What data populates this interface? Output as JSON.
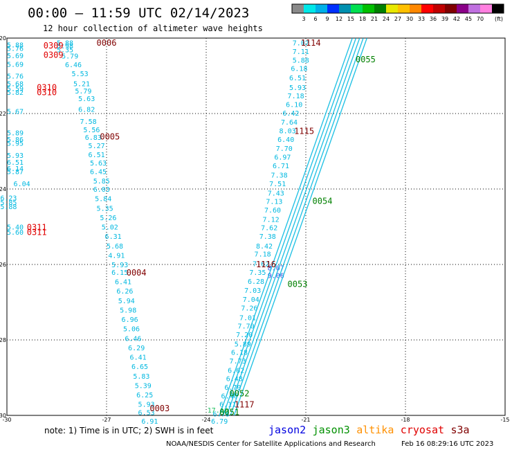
{
  "chart_data": {
    "type": "scatter",
    "title": "00:00 – 11:59 UTC 02/14/2023",
    "subtitle": "12 hour collection of altimeter wave heights",
    "xlim": [
      -30,
      -15
    ],
    "ylim": [
      -30,
      -20
    ],
    "x_ticks": [
      "-30",
      "-27",
      "-24",
      "-21",
      "-18",
      "-15"
    ],
    "y_ticks": [
      "-20",
      "-22",
      "-24",
      "-26",
      "-28",
      "-30"
    ],
    "x_tick_values": [
      -30,
      -27,
      -24,
      -21,
      -18,
      -15
    ],
    "y_tick_values": [
      -20,
      -22,
      -24,
      -26,
      -28,
      -30
    ],
    "grid": true,
    "colorbar": {
      "unit": "(ft)",
      "labels": [
        "3",
        "6",
        "9",
        "12",
        "15",
        "18",
        "21",
        "24",
        "27",
        "30",
        "33",
        "36",
        "39",
        "42",
        "45",
        "70"
      ],
      "colors": [
        "#8a8a8a",
        "#00e8e8",
        "#00b0e8",
        "#0030ff",
        "#0090b0",
        "#00e050",
        "#00c000",
        "#008000",
        "#e8e800",
        "#ffc000",
        "#ff8800",
        "#ff0000",
        "#c00000",
        "#800000",
        "#8a0088",
        "#c070e0",
        "#ff80e0",
        "#000000"
      ]
    },
    "track_labels": [
      {
        "text": "0006",
        "x": -27.0,
        "y": -20.11,
        "color": "#800000"
      },
      {
        "text": "0309",
        "x": -28.6,
        "y": -20.18,
        "color": "#e00000"
      },
      {
        "text": "0309",
        "x": -28.6,
        "y": -20.43,
        "color": "#e00000"
      },
      {
        "text": "0310",
        "x": -28.8,
        "y": -21.29,
        "color": "#e00000"
      },
      {
        "text": "0310",
        "x": -28.8,
        "y": -21.42,
        "color": "#e00000"
      },
      {
        "text": "0005",
        "x": -26.9,
        "y": -22.6,
        "color": "#800000"
      },
      {
        "text": "0311",
        "x": -29.1,
        "y": -25.0,
        "color": "#e00000"
      },
      {
        "text": "0311",
        "x": -29.1,
        "y": -25.13,
        "color": "#e00000"
      },
      {
        "text": "0004",
        "x": -26.1,
        "y": -26.2,
        "color": "#800000"
      },
      {
        "text": "0003",
        "x": -25.4,
        "y": -29.8,
        "color": "#800000"
      },
      {
        "text": "1114",
        "x": -20.85,
        "y": -20.11,
        "color": "#800000"
      },
      {
        "text": "1115",
        "x": -21.05,
        "y": -22.45,
        "color": "#800000"
      },
      {
        "text": "1116",
        "x": -22.2,
        "y": -25.98,
        "color": "#800000"
      },
      {
        "text": "1117",
        "x": -22.85,
        "y": -29.7,
        "color": "#800000"
      },
      {
        "text": "0055",
        "x": -19.2,
        "y": -20.55,
        "color": "#008000"
      },
      {
        "text": "0054",
        "x": -20.5,
        "y": -24.3,
        "color": "#008000"
      },
      {
        "text": "0053",
        "x": -21.25,
        "y": -26.5,
        "color": "#008000"
      },
      {
        "text": "0052",
        "x": -23.0,
        "y": -29.4,
        "color": "#008000"
      },
      {
        "text": "0051",
        "x": -23.3,
        "y": -29.9,
        "color": "#008000"
      }
    ],
    "series": [
      {
        "color": "#00b8e0",
        "points": [
          {
            "x": -29.75,
            "y": -20.17,
            "v": "5.88"
          },
          {
            "x": -29.75,
            "y": -20.27,
            "v": "5.76"
          },
          {
            "x": -29.75,
            "y": -20.46,
            "v": "5.69"
          },
          {
            "x": -29.75,
            "y": -20.69,
            "v": "5.69"
          },
          {
            "x": -29.75,
            "y": -21.0,
            "v": "5.76"
          },
          {
            "x": -29.75,
            "y": -21.2,
            "v": "5.68"
          },
          {
            "x": -29.75,
            "y": -21.33,
            "v": "5.59"
          },
          {
            "x": -29.75,
            "y": -21.43,
            "v": "5.82"
          },
          {
            "x": -29.75,
            "y": -21.94,
            "v": "5.67"
          },
          {
            "x": -29.75,
            "y": -22.5,
            "v": "5.89"
          },
          {
            "x": -29.75,
            "y": -22.68,
            "v": "5.86"
          },
          {
            "x": -29.75,
            "y": -22.78,
            "v": "5.95"
          },
          {
            "x": -29.75,
            "y": -23.1,
            "v": "5.93"
          },
          {
            "x": -29.75,
            "y": -23.28,
            "v": "6.51"
          },
          {
            "x": -29.75,
            "y": -23.45,
            "v": "6.14"
          },
          {
            "x": -29.75,
            "y": -23.53,
            "v": "5.87"
          },
          {
            "x": -29.55,
            "y": -23.85,
            "v": "6.04"
          },
          {
            "x": -29.95,
            "y": -24.23,
            "v": "6.23"
          },
          {
            "x": -29.95,
            "y": -24.35,
            "v": "5.85"
          },
          {
            "x": -29.95,
            "y": -24.46,
            "v": "5.88"
          },
          {
            "x": -29.75,
            "y": -25.0,
            "v": "5.40"
          },
          {
            "x": -29.75,
            "y": -25.14,
            "v": "5.60"
          }
        ]
      },
      {
        "color": "#00b8e0",
        "points": [
          {
            "x": -28.25,
            "y": -20.12,
            "v": "5.88"
          },
          {
            "x": -28.25,
            "y": -20.2,
            "v": "5.98"
          },
          {
            "x": -28.25,
            "y": -20.3,
            "v": "5.35"
          },
          {
            "x": -28.1,
            "y": -20.47,
            "v": "5.79"
          },
          {
            "x": -28.0,
            "y": -20.7,
            "v": "6.46"
          },
          {
            "x": -27.8,
            "y": -20.94,
            "v": "5.53"
          },
          {
            "x": -27.75,
            "y": -21.2,
            "v": "5.21"
          },
          {
            "x": -27.7,
            "y": -21.39,
            "v": "5.79"
          },
          {
            "x": -27.6,
            "y": -21.6,
            "v": "5.63"
          },
          {
            "x": -27.6,
            "y": -21.88,
            "v": "6.82"
          },
          {
            "x": -27.55,
            "y": -22.2,
            "v": "7.58"
          },
          {
            "x": -27.45,
            "y": -22.42,
            "v": "5.56"
          },
          {
            "x": -27.4,
            "y": -22.62,
            "v": "6.83"
          },
          {
            "x": -27.3,
            "y": -22.84,
            "v": "5.27"
          },
          {
            "x": -27.3,
            "y": -23.08,
            "v": "6.51"
          },
          {
            "x": -27.25,
            "y": -23.3,
            "v": "5.63"
          },
          {
            "x": -27.25,
            "y": -23.53,
            "v": "6.45"
          },
          {
            "x": -27.15,
            "y": -23.78,
            "v": "5.85"
          },
          {
            "x": -27.15,
            "y": -24.0,
            "v": "6.03"
          },
          {
            "x": -27.1,
            "y": -24.25,
            "v": "5.84"
          },
          {
            "x": -27.05,
            "y": -24.5,
            "v": "5.35"
          },
          {
            "x": -26.95,
            "y": -24.75,
            "v": "5.26"
          },
          {
            "x": -26.9,
            "y": -25.0,
            "v": "5.02"
          },
          {
            "x": -26.8,
            "y": -25.25,
            "v": "6.31"
          },
          {
            "x": -26.75,
            "y": -25.5,
            "v": "5.68"
          },
          {
            "x": -26.7,
            "y": -25.75,
            "v": "4.91"
          },
          {
            "x": -26.6,
            "y": -26.0,
            "v": "5.93"
          },
          {
            "x": -26.6,
            "y": -26.2,
            "v": "6.15"
          },
          {
            "x": -26.5,
            "y": -26.45,
            "v": "6.41"
          },
          {
            "x": -26.45,
            "y": -26.7,
            "v": "6.26"
          },
          {
            "x": -26.4,
            "y": -26.95,
            "v": "5.94"
          },
          {
            "x": -26.35,
            "y": -27.2,
            "v": "5.98"
          },
          {
            "x": -26.3,
            "y": -27.45,
            "v": "6.96"
          },
          {
            "x": -26.25,
            "y": -27.7,
            "v": "5.06"
          },
          {
            "x": -26.2,
            "y": -27.95,
            "v": "6.46"
          },
          {
            "x": -26.1,
            "y": -28.2,
            "v": "6.29"
          },
          {
            "x": -26.05,
            "y": -28.45,
            "v": "6.41"
          },
          {
            "x": -26.0,
            "y": -28.7,
            "v": "6.65"
          },
          {
            "x": -25.95,
            "y": -28.95,
            "v": "5.83"
          },
          {
            "x": -25.9,
            "y": -29.2,
            "v": "5.39"
          },
          {
            "x": -25.85,
            "y": -29.45,
            "v": "6.25"
          },
          {
            "x": -25.8,
            "y": -29.7,
            "v": "5.93"
          },
          {
            "x": -25.8,
            "y": -29.92,
            "v": "6.53"
          },
          {
            "x": -25.7,
            "y": -30.15,
            "v": "6.91"
          }
        ]
      },
      {
        "color": "#00b8e0",
        "points": [
          {
            "x": -21.15,
            "y": -20.12,
            "v": "7.02"
          },
          {
            "x": -21.15,
            "y": -20.35,
            "v": "7.11"
          },
          {
            "x": -21.15,
            "y": -20.58,
            "v": "5.88"
          },
          {
            "x": -21.2,
            "y": -20.8,
            "v": "6.18"
          },
          {
            "x": -21.25,
            "y": -21.05,
            "v": "6.51"
          },
          {
            "x": -21.25,
            "y": -21.3,
            "v": "5.93"
          },
          {
            "x": -21.3,
            "y": -21.52,
            "v": "7.18"
          },
          {
            "x": -21.35,
            "y": -21.75,
            "v": "6.10"
          },
          {
            "x": -21.45,
            "y": -21.98,
            "v": "6.42"
          },
          {
            "x": -21.5,
            "y": -22.22,
            "v": "7.64"
          },
          {
            "x": -21.55,
            "y": -22.45,
            "v": "8.03"
          },
          {
            "x": -21.6,
            "y": -22.68,
            "v": "6.40"
          },
          {
            "x": -21.65,
            "y": -22.92,
            "v": "7.70"
          },
          {
            "x": -21.7,
            "y": -23.15,
            "v": "6.97"
          },
          {
            "x": -21.75,
            "y": -23.38,
            "v": "6.71"
          },
          {
            "x": -21.8,
            "y": -23.62,
            "v": "7.38"
          },
          {
            "x": -21.85,
            "y": -23.85,
            "v": "7.51"
          },
          {
            "x": -21.9,
            "y": -24.1,
            "v": "7.43"
          },
          {
            "x": -21.95,
            "y": -24.32,
            "v": "7.13"
          },
          {
            "x": -22.0,
            "y": -24.55,
            "v": "7.60"
          },
          {
            "x": -22.05,
            "y": -24.8,
            "v": "7.12"
          },
          {
            "x": -22.1,
            "y": -25.02,
            "v": "7.62"
          },
          {
            "x": -22.15,
            "y": -25.25,
            "v": "7.38"
          },
          {
            "x": -22.25,
            "y": -25.5,
            "v": "8.42"
          },
          {
            "x": -22.3,
            "y": -25.72,
            "v": "7.18"
          },
          {
            "x": -22.35,
            "y": -25.97,
            "v": "7.62"
          },
          {
            "x": -22.45,
            "y": -26.2,
            "v": "7.35"
          },
          {
            "x": -22.5,
            "y": -26.44,
            "v": "6.28"
          },
          {
            "x": -22.6,
            "y": -26.68,
            "v": "7.03"
          },
          {
            "x": -22.65,
            "y": -26.92,
            "v": "7.04"
          },
          {
            "x": -22.7,
            "y": -27.15,
            "v": "7.26"
          },
          {
            "x": -22.75,
            "y": -27.4,
            "v": "7.01"
          },
          {
            "x": -22.8,
            "y": -27.62,
            "v": "7.70"
          },
          {
            "x": -22.85,
            "y": -27.85,
            "v": "7.20"
          },
          {
            "x": -22.9,
            "y": -28.1,
            "v": "5.89"
          },
          {
            "x": -23.0,
            "y": -28.32,
            "v": "6.18"
          },
          {
            "x": -23.05,
            "y": -28.55,
            "v": "7.73"
          },
          {
            "x": -23.1,
            "y": -28.8,
            "v": "6.62"
          },
          {
            "x": -23.15,
            "y": -29.02,
            "v": "6.48"
          },
          {
            "x": -23.2,
            "y": -29.25,
            "v": "6.70"
          },
          {
            "x": -23.3,
            "y": -29.48,
            "v": "6.40"
          },
          {
            "x": -23.35,
            "y": -29.7,
            "v": "6.11"
          },
          {
            "x": -23.55,
            "y": -29.95,
            "v": "6.78"
          },
          {
            "x": -23.6,
            "y": -30.15,
            "v": "6.79"
          }
        ]
      },
      {
        "color": "#3050e0",
        "points": [
          {
            "x": -21.9,
            "y": -26.08,
            "v": "8.07"
          },
          {
            "x": -21.9,
            "y": -26.28,
            "v": "9.06"
          }
        ]
      },
      {
        "color": "#20c060",
        "points": [
          {
            "x": -23.65,
            "y": -29.85,
            "v": "17.10"
          }
        ]
      }
    ],
    "satellites": [
      {
        "name": "jason2",
        "color": "#0000e0"
      },
      {
        "name": "jason3",
        "color": "#009000"
      },
      {
        "name": "altika",
        "color": "#ff9000"
      },
      {
        "name": "cryosat",
        "color": "#e00000"
      },
      {
        "name": "s3a",
        "color": "#800000"
      }
    ]
  },
  "footer": {
    "note": "note:  1) Time is in UTC;  2) SWH is in feet",
    "credit": "NOAA/NESDIS Center for Satellite Applications and Research",
    "timestamp": "Feb 16 08:29:16 UTC 2023"
  }
}
